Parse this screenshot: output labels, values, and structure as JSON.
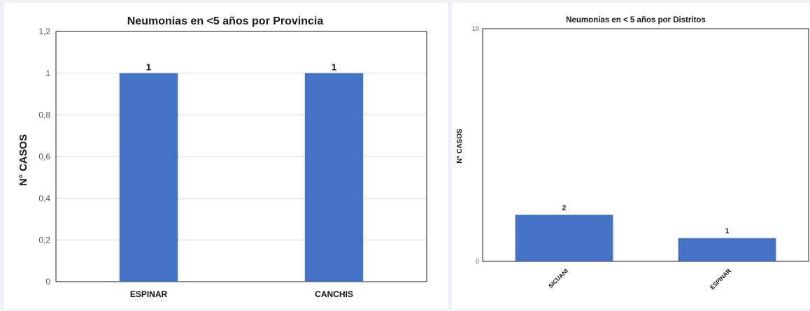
{
  "chart_data": [
    {
      "type": "bar",
      "title": "Neumonias en <5 años por Provincia",
      "ylabel": "N° CASOS",
      "xlabel": "",
      "categories": [
        "ESPINAR",
        "CANCHIS"
      ],
      "values": [
        1,
        1
      ],
      "data_labels": [
        "1",
        "1"
      ],
      "yticks": [
        "0",
        "0,2",
        "0,4",
        "0,6",
        "0,8",
        "1",
        "1,2"
      ],
      "ylim": [
        0,
        1.2
      ],
      "grid": true,
      "bar_color": "#4472c4"
    },
    {
      "type": "bar",
      "title": "Neumonias en < 5 años por Distritos",
      "ylabel": "N° CASOS",
      "xlabel": "",
      "categories": [
        "SICUANI",
        "ESPINAR"
      ],
      "values": [
        2,
        1
      ],
      "data_labels": [
        "2",
        "1"
      ],
      "yticks": [
        "0",
        "10"
      ],
      "ylim": [
        0,
        10
      ],
      "grid": false,
      "bar_color": "#4472c4"
    }
  ]
}
